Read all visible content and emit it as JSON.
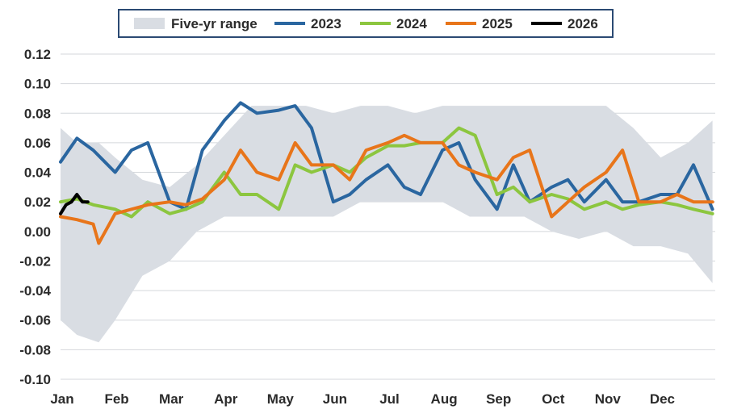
{
  "chart_data": {
    "type": "line",
    "x_months": [
      "Jan",
      "Feb",
      "Mar",
      "Apr",
      "May",
      "Jun",
      "Jul",
      "Aug",
      "Sep",
      "Oct",
      "Nov",
      "Dec"
    ],
    "y_ticks": [
      "0.12",
      "0.10",
      "0.08",
      "0.06",
      "0.04",
      "0.02",
      "0.00",
      "-0.02",
      "-0.04",
      "-0.06",
      "-0.08",
      "-0.10"
    ],
    "ylim": [
      -0.1,
      0.12
    ],
    "grid": "horizontal",
    "legend": {
      "placement": "top",
      "items": [
        {
          "label": "Five-yr range",
          "kind": "band",
          "color": "#d9dde3"
        },
        {
          "label": "2023",
          "kind": "line",
          "color": "#2a66a0"
        },
        {
          "label": "2024",
          "kind": "line",
          "color": "#8cc63f"
        },
        {
          "label": "2025",
          "kind": "line",
          "color": "#e8751a"
        },
        {
          "label": "2026",
          "kind": "line",
          "color": "#000000"
        }
      ]
    },
    "range": {
      "name": "Five-yr range",
      "x": [
        0,
        0.3,
        0.7,
        1.0,
        1.5,
        2.0,
        2.5,
        3.0,
        3.5,
        4.0,
        4.5,
        5.0,
        5.5,
        6.0,
        6.5,
        7.0,
        7.5,
        8.0,
        8.5,
        9.0,
        9.5,
        10.0,
        10.5,
        11.0,
        11.5,
        11.95
      ],
      "low": [
        -0.06,
        -0.07,
        -0.075,
        -0.06,
        -0.03,
        -0.02,
        0.0,
        0.01,
        0.01,
        0.01,
        0.01,
        0.01,
        0.02,
        0.02,
        0.02,
        0.02,
        0.01,
        0.01,
        0.01,
        0.0,
        -0.005,
        0.0,
        -0.01,
        -0.01,
        -0.015,
        -0.035
      ],
      "high": [
        0.07,
        0.06,
        0.06,
        0.05,
        0.035,
        0.03,
        0.045,
        0.065,
        0.085,
        0.085,
        0.085,
        0.08,
        0.085,
        0.085,
        0.08,
        0.085,
        0.085,
        0.085,
        0.085,
        0.085,
        0.085,
        0.085,
        0.07,
        0.05,
        0.06,
        0.075
      ]
    },
    "series": [
      {
        "name": "2023",
        "color": "#2a66a0",
        "x": [
          0,
          0.3,
          0.6,
          1.0,
          1.3,
          1.6,
          2.0,
          2.3,
          2.6,
          3.0,
          3.3,
          3.6,
          4.0,
          4.3,
          4.6,
          5.0,
          5.3,
          5.6,
          6.0,
          6.3,
          6.6,
          7.0,
          7.3,
          7.6,
          8.0,
          8.3,
          8.6,
          9.0,
          9.3,
          9.6,
          10.0,
          10.3,
          10.6,
          11.0,
          11.3,
          11.6,
          11.95
        ],
        "values": [
          0.047,
          0.063,
          0.055,
          0.04,
          0.055,
          0.06,
          0.02,
          0.015,
          0.055,
          0.075,
          0.087,
          0.08,
          0.082,
          0.085,
          0.07,
          0.02,
          0.025,
          0.035,
          0.045,
          0.03,
          0.025,
          0.055,
          0.06,
          0.035,
          0.015,
          0.045,
          0.02,
          0.03,
          0.035,
          0.02,
          0.035,
          0.02,
          0.02,
          0.025,
          0.025,
          0.045,
          0.015
        ]
      },
      {
        "name": "2024",
        "color": "#8cc63f",
        "x": [
          0,
          0.3,
          0.6,
          1.0,
          1.3,
          1.6,
          2.0,
          2.3,
          2.6,
          3.0,
          3.3,
          3.6,
          4.0,
          4.3,
          4.6,
          5.0,
          5.3,
          5.6,
          6.0,
          6.3,
          6.6,
          7.0,
          7.3,
          7.6,
          8.0,
          8.3,
          8.6,
          9.0,
          9.3,
          9.6,
          10.0,
          10.3,
          10.6,
          11.0,
          11.3,
          11.6,
          11.95
        ],
        "values": [
          0.02,
          0.022,
          0.018,
          0.015,
          0.01,
          0.02,
          0.012,
          0.015,
          0.02,
          0.04,
          0.025,
          0.025,
          0.015,
          0.045,
          0.04,
          0.045,
          0.04,
          0.05,
          0.058,
          0.058,
          0.06,
          0.06,
          0.07,
          0.065,
          0.025,
          0.03,
          0.02,
          0.025,
          0.022,
          0.015,
          0.02,
          0.015,
          0.018,
          0.02,
          0.018,
          0.015,
          0.012
        ]
      },
      {
        "name": "2025",
        "color": "#e8751a",
        "x": [
          0,
          0.3,
          0.6,
          0.7,
          1.0,
          1.3,
          1.6,
          2.0,
          2.3,
          2.6,
          3.0,
          3.3,
          3.6,
          4.0,
          4.3,
          4.6,
          5.0,
          5.3,
          5.6,
          6.0,
          6.3,
          6.6,
          7.0,
          7.3,
          7.6,
          8.0,
          8.3,
          8.6,
          9.0,
          9.3,
          9.6,
          10.0,
          10.3,
          10.6,
          11.0,
          11.3,
          11.6,
          11.95
        ],
        "values": [
          0.01,
          0.008,
          0.005,
          -0.008,
          0.012,
          0.015,
          0.018,
          0.02,
          0.018,
          0.022,
          0.035,
          0.055,
          0.04,
          0.035,
          0.06,
          0.045,
          0.045,
          0.035,
          0.055,
          0.06,
          0.065,
          0.06,
          0.06,
          0.045,
          0.04,
          0.035,
          0.05,
          0.055,
          0.01,
          0.02,
          0.03,
          0.04,
          0.055,
          0.02,
          0.02,
          0.025,
          0.02,
          0.02
        ]
      },
      {
        "name": "2026",
        "color": "#000000",
        "x": [
          0,
          0.1,
          0.2,
          0.3,
          0.4,
          0.5
        ],
        "values": [
          0.012,
          0.018,
          0.02,
          0.025,
          0.02,
          0.02
        ]
      }
    ]
  }
}
